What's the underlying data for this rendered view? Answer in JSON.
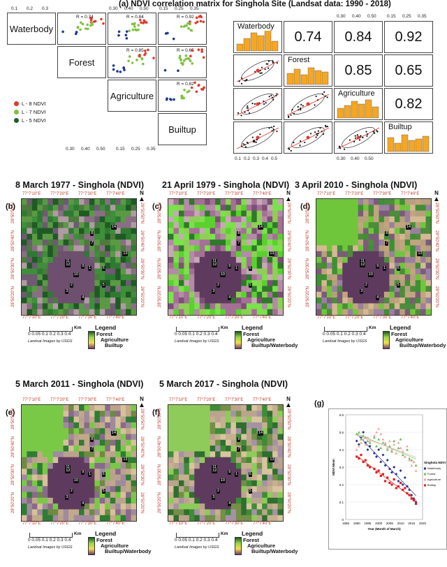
{
  "figure_a": {
    "letter": "(a)",
    "title": "NDVI correlation matrix for Singhola Site (Landsat data: 1990 - 2018)",
    "labels": [
      "Waterbody",
      "Forest",
      "Agriculture",
      "Builtup"
    ],
    "left_r_labels": [
      "R = 0.74",
      "R = 0.84",
      "R = 0.92",
      "R = 0.85",
      "R = 0.65",
      "R = 0.82"
    ],
    "right_values": [
      "0.74",
      "0.84",
      "0.92",
      "0.85",
      "0.65",
      "0.82"
    ],
    "top_ticks_left": [
      "0.1",
      "0.2",
      "0.3"
    ],
    "top_ticks_mid": [
      "0.30",
      "0.40",
      "0.50"
    ],
    "top_ticks_right": [
      "0.15",
      "0.25",
      "0.35"
    ],
    "bottom_ticks_left": [
      "0.15",
      "0.25",
      "0.35"
    ],
    "bottom_ticks_mid": [
      "0.30",
      "0.40",
      "0.50"
    ],
    "bottom_ticks_right_a": [
      "0.1",
      "0.2",
      "0.3",
      "0.4",
      "0.5"
    ],
    "bottom_ticks_right_b": [
      "0.30",
      "0.40",
      "0.50"
    ],
    "legend": [
      {
        "label": "L - 8 NDVI",
        "color": "#e03a2f"
      },
      {
        "label": "L - 7 NDVI",
        "color": "#7fc241"
      },
      {
        "label": "L - 5 NDVI",
        "color": "#1f5e2b"
      }
    ]
  },
  "maps": [
    {
      "letter": "(b)",
      "title": "8 March 1977 - Singhola (NDVI)",
      "legend": [
        "Forest",
        "Agriculture",
        "Builtup"
      ]
    },
    {
      "letter": "(c)",
      "title": "21 April 1979 - Singhola (NDVI)",
      "legend": [
        "Forest",
        "Agriculture",
        "Builtup/Waterbody"
      ]
    },
    {
      "letter": "(d)",
      "title": "3 April 2010 - Singhola (NDVI)",
      "legend": [
        "Forest",
        "Agriculture",
        "Builtup/Waterbody"
      ]
    },
    {
      "letter": "(e)",
      "title": "5 March 2011 - Singhola (NDVI)",
      "legend": [
        "Forest",
        "Agriculture",
        "Builtup/Waterbody"
      ]
    },
    {
      "letter": "(f)",
      "title": "5 March 2017 - Singhola (NDVI)",
      "legend": [
        "Forest",
        "Agriculture",
        "Builtup/Waterbody"
      ]
    }
  ],
  "map_common": {
    "top_ticks": [
      "77°7'10\"E",
      "77°7'20\"E",
      "77°7'30\"E",
      "77°7'40\"E"
    ],
    "side_ticks": [
      "28°50'50\"N",
      "28°50'40\"N",
      "28°50'30\"N",
      "28°50'20\"N"
    ],
    "north": "N",
    "scale_unit": "Km",
    "scale_ticks": "0 0.05 0.1 0.2 0.3 0.4",
    "legend_title": "Legend",
    "credit": "Landsat Images by USGS",
    "markers": [
      "1",
      "2",
      "3",
      "4",
      "5",
      "6",
      "7",
      "8",
      "9",
      "10",
      "11",
      "12",
      "13",
      "14"
    ]
  },
  "chart_g": {
    "letter": "(g)",
    "legend_title": "Singhola NDVI",
    "xlabel": "Year (Month of March)",
    "ylabel": "NDVI Mean",
    "colors": {
      "Waterbody": "#2b2f8f",
      "Forest": "#6fbf5a",
      "Agriculture": "#f0a8a8",
      "Builtup": "#e02020"
    }
  },
  "chart_data": {
    "type": "scatter",
    "xlabel": "Year (Month of March)",
    "ylabel": "NDVI Mean",
    "xlim": [
      1985,
      2020
    ],
    "ylim": [
      0,
      0.6
    ],
    "x_ticks": [
      1985,
      1990,
      1995,
      2000,
      2005,
      2010,
      2015,
      2020
    ],
    "y_ticks": [
      0,
      0.1,
      0.2,
      0.3,
      0.4,
      0.5,
      0.6
    ],
    "legend_position": "right",
    "series": [
      {
        "name": "Waterbody",
        "x": [
          1990,
          1991,
          1992,
          1993,
          1994,
          1995,
          1996,
          1998,
          1999,
          2000,
          2001,
          2002,
          2003,
          2004,
          2005,
          2006,
          2007,
          2008,
          2009,
          2010,
          2011,
          2012,
          2013,
          2014,
          2015,
          2016,
          2017
        ],
        "values": [
          0.45,
          0.43,
          0.47,
          0.5,
          0.44,
          0.4,
          0.42,
          0.38,
          0.36,
          0.4,
          0.33,
          0.37,
          0.31,
          0.34,
          0.29,
          0.27,
          0.3,
          0.26,
          0.22,
          0.28,
          0.2,
          0.24,
          0.19,
          0.17,
          0.14,
          0.12,
          0.1
        ]
      },
      {
        "name": "Forest",
        "x": [
          1990,
          1991,
          1992,
          1993,
          1994,
          1995,
          1996,
          1998,
          1999,
          2000,
          2001,
          2002,
          2003,
          2004,
          2005,
          2006,
          2007,
          2008,
          2009,
          2010,
          2011,
          2012,
          2013,
          2014,
          2015,
          2016,
          2017
        ],
        "values": [
          0.49,
          0.5,
          0.46,
          0.48,
          0.47,
          0.45,
          0.44,
          0.47,
          0.42,
          0.46,
          0.41,
          0.44,
          0.43,
          0.4,
          0.42,
          0.39,
          0.45,
          0.38,
          0.41,
          0.46,
          0.37,
          0.36,
          0.4,
          0.35,
          0.34,
          0.33,
          0.31
        ]
      },
      {
        "name": "Agriculture",
        "x": [
          1990,
          1991,
          1992,
          1993,
          1994,
          1995,
          1996,
          1998,
          1999,
          2000,
          2001,
          2002,
          2003,
          2004,
          2005,
          2006,
          2007,
          2008,
          2009,
          2010,
          2011,
          2012,
          2013,
          2014,
          2015,
          2016,
          2017
        ],
        "values": [
          0.4,
          0.42,
          0.44,
          0.46,
          0.43,
          0.47,
          0.45,
          0.48,
          0.5,
          0.52,
          0.49,
          0.46,
          0.44,
          0.41,
          0.45,
          0.4,
          0.43,
          0.38,
          0.44,
          0.41,
          0.39,
          0.36,
          0.42,
          0.34,
          0.31,
          0.33,
          0.28
        ]
      },
      {
        "name": "Builtup",
        "x": [
          1990,
          1991,
          1992,
          1993,
          1994,
          1995,
          1996,
          1998,
          1999,
          2000,
          2001,
          2002,
          2003,
          2004,
          2005,
          2006,
          2007,
          2008,
          2009,
          2010,
          2011,
          2012,
          2013,
          2014,
          2015,
          2016,
          2017
        ],
        "values": [
          0.36,
          0.35,
          0.37,
          0.33,
          0.34,
          0.31,
          0.3,
          0.29,
          0.27,
          0.28,
          0.25,
          0.26,
          0.22,
          0.24,
          0.21,
          0.2,
          0.23,
          0.18,
          0.19,
          0.21,
          0.17,
          0.18,
          0.15,
          0.14,
          0.12,
          0.11,
          0.09
        ]
      }
    ]
  }
}
